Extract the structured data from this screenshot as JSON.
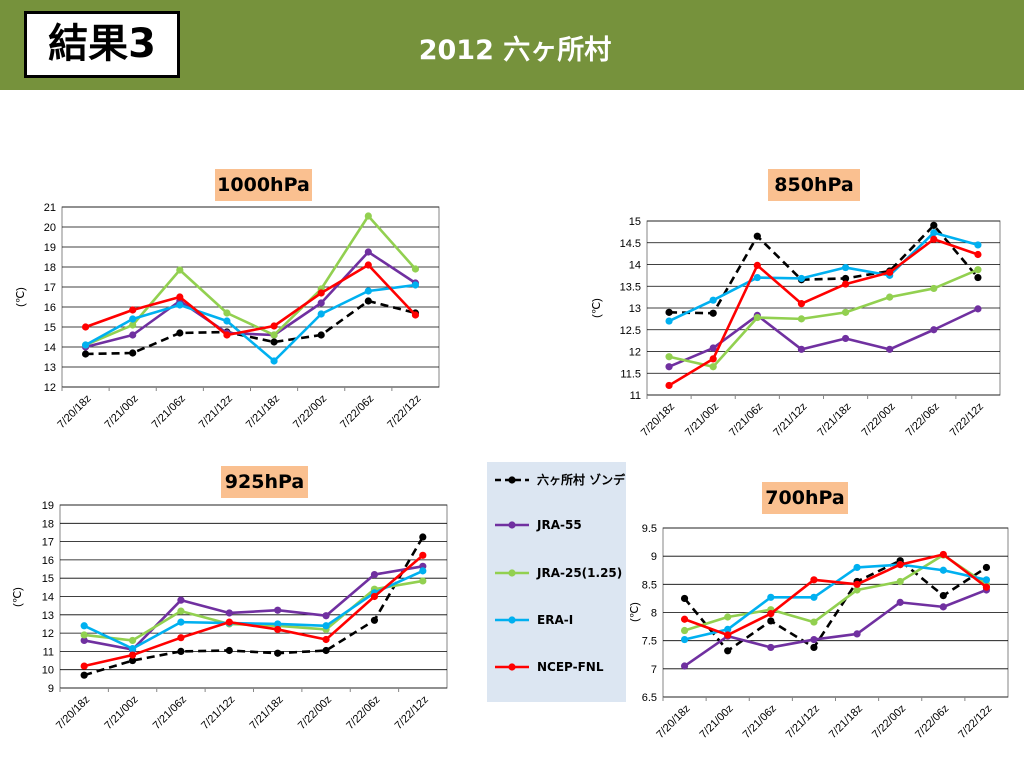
{
  "header": {
    "result_label": "結果3",
    "title": "2012 六ヶ所村",
    "bar_color": "#76923c"
  },
  "legend": [
    {
      "name": "六ヶ所村 ゾンデ",
      "color": "#000000",
      "dashed": true
    },
    {
      "name": "JRA-55",
      "color": "#7030a0",
      "dashed": false
    },
    {
      "name": "JRA-25(1.25)",
      "color": "#92d050",
      "dashed": false
    },
    {
      "name": "ERA-I",
      "color": "#00b0f0",
      "dashed": false
    },
    {
      "name": "NCEP-FNL",
      "color": "#ff0000",
      "dashed": false
    }
  ],
  "chart_data": [
    {
      "type": "line",
      "title": "1000hPa",
      "ylabel": "(℃)",
      "categories": [
        "7/20/18z",
        "7/21/00z",
        "7/21/06z",
        "7/21/12z",
        "7/21/18z",
        "7/22/00z",
        "7/22/06z",
        "7/22/12z"
      ],
      "ylim": [
        12,
        21
      ],
      "ystep": 1,
      "ytick_labels": [
        "12",
        "13",
        "14",
        "15",
        "16",
        "17",
        "18",
        "19",
        "20",
        "21"
      ],
      "grid": true,
      "series": [
        {
          "name": "六ヶ所村 ゾンデ",
          "values": [
            13.65,
            13.7,
            14.7,
            14.75,
            14.25,
            14.6,
            16.3,
            15.7
          ]
        },
        {
          "name": "JRA-55",
          "values": [
            14.0,
            14.6,
            16.3,
            14.7,
            14.6,
            16.2,
            18.75,
            17.2
          ]
        },
        {
          "name": "JRA-25(1.25)",
          "values": [
            14.1,
            15.1,
            17.85,
            15.7,
            14.6,
            16.9,
            20.55,
            17.9
          ]
        },
        {
          "name": "ERA-I",
          "values": [
            14.1,
            15.4,
            16.1,
            15.3,
            13.3,
            15.65,
            16.8,
            17.1
          ]
        },
        {
          "name": "NCEP-FNL",
          "values": [
            15.0,
            15.85,
            16.5,
            14.6,
            15.05,
            16.7,
            18.1,
            15.6
          ]
        }
      ]
    },
    {
      "type": "line",
      "title": "850hPa",
      "ylabel": "(℃)",
      "categories": [
        "7/20/18z",
        "7/21/00z",
        "7/21/06z",
        "7/21/12z",
        "7/21/18z",
        "7/22/00z",
        "7/22/06z",
        "7/22/12z"
      ],
      "ylim": [
        11,
        15
      ],
      "ystep": 0.5,
      "ytick_labels": [
        "11",
        "11.5",
        "12",
        "12.5",
        "13",
        "13.5",
        "14",
        "14.5",
        "15"
      ],
      "grid": true,
      "series": [
        {
          "name": "六ヶ所村 ゾンデ",
          "values": [
            12.9,
            12.88,
            14.65,
            13.65,
            13.68,
            13.85,
            14.9,
            13.7
          ]
        },
        {
          "name": "JRA-55",
          "values": [
            11.65,
            12.08,
            12.83,
            12.05,
            12.3,
            12.05,
            12.5,
            12.98
          ]
        },
        {
          "name": "JRA-25(1.25)",
          "values": [
            11.88,
            11.65,
            12.78,
            12.75,
            12.9,
            13.25,
            13.45,
            13.88
          ]
        },
        {
          "name": "ERA-I",
          "values": [
            12.7,
            13.18,
            13.7,
            13.68,
            13.93,
            13.75,
            14.73,
            14.45
          ]
        },
        {
          "name": "NCEP-FNL",
          "values": [
            11.22,
            11.83,
            13.98,
            13.1,
            13.55,
            13.82,
            14.58,
            14.23
          ]
        }
      ]
    },
    {
      "type": "line",
      "title": "925hPa",
      "ylabel": "(℃)",
      "categories": [
        "7/20/18z",
        "7/21/00z",
        "7/21/06z",
        "7/21/12z",
        "7/21/18z",
        "7/22/00z",
        "7/22/06z",
        "7/22/12z"
      ],
      "ylim": [
        9,
        19
      ],
      "ystep": 1,
      "ytick_labels": [
        "9",
        "10",
        "11",
        "12",
        "13",
        "14",
        "15",
        "16",
        "17",
        "18",
        "19"
      ],
      "grid": true,
      "series": [
        {
          "name": "六ヶ所村 ゾンデ",
          "values": [
            9.7,
            10.5,
            11.0,
            11.05,
            10.9,
            11.05,
            12.7,
            17.25
          ]
        },
        {
          "name": "JRA-55",
          "values": [
            11.6,
            11.1,
            13.8,
            13.1,
            13.25,
            12.95,
            15.2,
            15.65
          ]
        },
        {
          "name": "JRA-25(1.25)",
          "values": [
            11.9,
            11.6,
            13.2,
            12.5,
            12.4,
            12.2,
            14.4,
            14.85
          ]
        },
        {
          "name": "ERA-I",
          "values": [
            12.4,
            11.15,
            12.6,
            12.55,
            12.5,
            12.4,
            14.2,
            15.4
          ]
        },
        {
          "name": "NCEP-FNL",
          "values": [
            10.2,
            10.8,
            11.75,
            12.6,
            12.2,
            11.65,
            14.0,
            16.25
          ]
        }
      ]
    },
    {
      "type": "line",
      "title": "700hPa",
      "ylabel": "(℃)",
      "categories": [
        "7/20/18z",
        "7/21/00z",
        "7/21/06z",
        "7/21/12z",
        "7/21/18z",
        "7/22/00z",
        "7/22/06z",
        "7/22/12z"
      ],
      "ylim": [
        6.5,
        9.5
      ],
      "ystep": 0.5,
      "ytick_labels": [
        "6.5",
        "7",
        "7.5",
        "8",
        "8.5",
        "9",
        "9.5"
      ],
      "grid": true,
      "series": [
        {
          "name": "六ヶ所村 ゾンデ",
          "values": [
            8.25,
            7.32,
            7.85,
            7.38,
            8.55,
            8.92,
            8.3,
            8.8
          ]
        },
        {
          "name": "JRA-55",
          "values": [
            7.05,
            7.58,
            7.38,
            7.52,
            7.62,
            8.18,
            8.1,
            8.4
          ]
        },
        {
          "name": "JRA-25(1.25)",
          "values": [
            7.68,
            7.92,
            8.05,
            7.83,
            8.4,
            8.55,
            9.02,
            8.5
          ]
        },
        {
          "name": "ERA-I",
          "values": [
            7.52,
            7.7,
            8.27,
            8.27,
            8.8,
            8.85,
            8.75,
            8.58
          ]
        },
        {
          "name": "NCEP-FNL",
          "values": [
            7.88,
            7.6,
            7.98,
            8.58,
            8.5,
            8.85,
            9.03,
            8.45
          ]
        }
      ]
    }
  ]
}
